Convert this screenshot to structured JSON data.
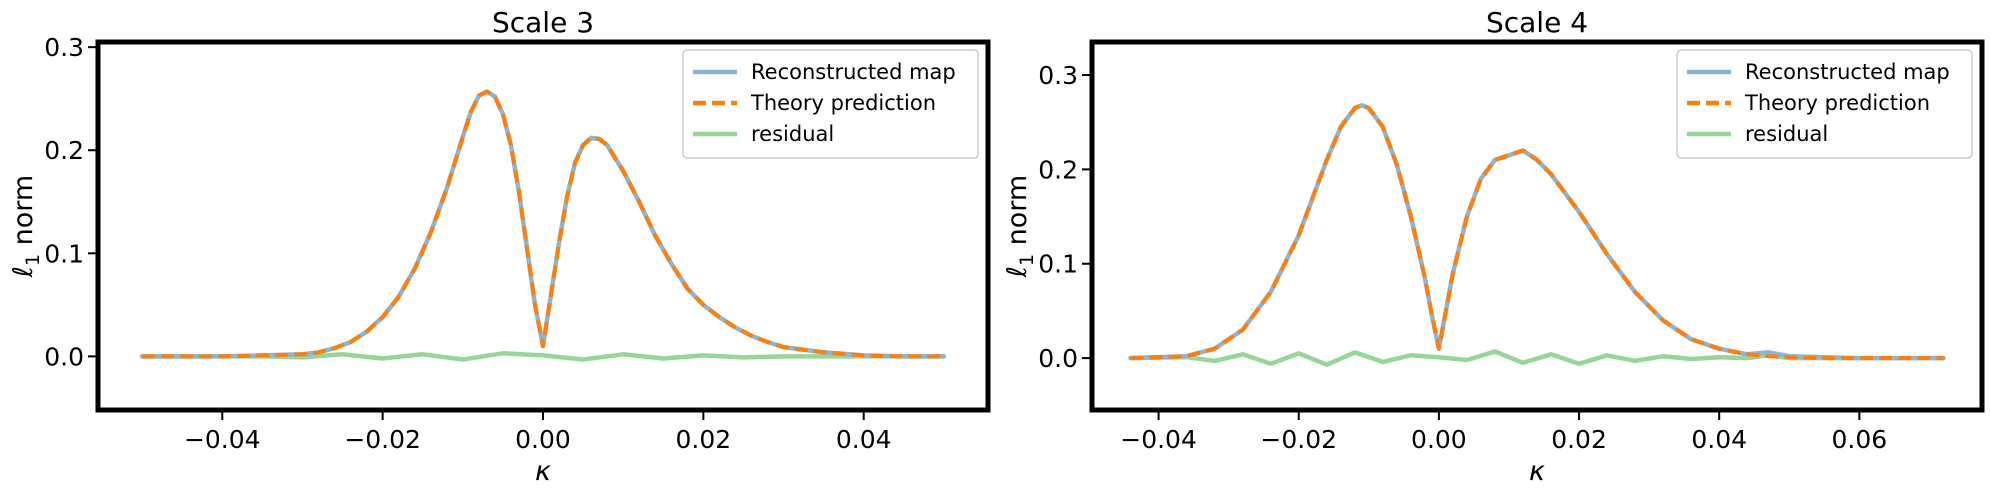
{
  "chart_data": [
    {
      "type": "line",
      "title": "Scale 3",
      "xlabel": "κ",
      "ylabel_symbol": "ℓ",
      "ylabel_sub": "1",
      "ylabel_rest": " norm",
      "xlim": [
        -0.0555,
        0.0555
      ],
      "ylim": [
        -0.052,
        0.305
      ],
      "xticks": [
        -0.04,
        -0.02,
        0.0,
        0.02,
        0.04
      ],
      "xtick_labels": [
        "−0.04",
        "−0.02",
        "0.00",
        "0.02",
        "0.04"
      ],
      "yticks": [
        0.0,
        0.1,
        0.2,
        0.3
      ],
      "ytick_labels": [
        "0.0",
        "0.1",
        "0.2",
        "0.3"
      ],
      "grid": false,
      "legend_position": "top-right",
      "series": [
        {
          "name": "Reconstructed map",
          "color": "#8ab6d6",
          "style": "solid",
          "x": [
            -0.05,
            -0.04,
            -0.035,
            -0.03,
            -0.028,
            -0.026,
            -0.024,
            -0.022,
            -0.02,
            -0.018,
            -0.016,
            -0.014,
            -0.012,
            -0.01,
            -0.009,
            -0.008,
            -0.007,
            -0.006,
            -0.005,
            -0.004,
            -0.003,
            -0.002,
            -0.001,
            0.0,
            0.001,
            0.002,
            0.003,
            0.004,
            0.005,
            0.006,
            0.007,
            0.008,
            0.01,
            0.012,
            0.014,
            0.016,
            0.018,
            0.02,
            0.022,
            0.024,
            0.026,
            0.028,
            0.03,
            0.035,
            0.04,
            0.045,
            0.05
          ],
          "values": [
            0.0,
            0.0,
            0.001,
            0.002,
            0.004,
            0.008,
            0.014,
            0.024,
            0.038,
            0.058,
            0.085,
            0.12,
            0.163,
            0.213,
            0.237,
            0.253,
            0.257,
            0.252,
            0.235,
            0.205,
            0.16,
            0.105,
            0.05,
            0.01,
            0.06,
            0.11,
            0.155,
            0.188,
            0.205,
            0.212,
            0.211,
            0.205,
            0.18,
            0.15,
            0.117,
            0.09,
            0.066,
            0.05,
            0.038,
            0.028,
            0.02,
            0.014,
            0.009,
            0.004,
            0.001,
            0.0,
            0.0
          ]
        },
        {
          "name": "Theory prediction",
          "color": "#ff7f0e",
          "style": "dashed",
          "x": [
            -0.05,
            -0.04,
            -0.035,
            -0.03,
            -0.028,
            -0.026,
            -0.024,
            -0.022,
            -0.02,
            -0.018,
            -0.016,
            -0.014,
            -0.012,
            -0.01,
            -0.009,
            -0.008,
            -0.007,
            -0.006,
            -0.005,
            -0.004,
            -0.003,
            -0.002,
            -0.001,
            0.0,
            0.001,
            0.002,
            0.003,
            0.004,
            0.005,
            0.006,
            0.007,
            0.008,
            0.01,
            0.012,
            0.014,
            0.016,
            0.018,
            0.02,
            0.022,
            0.024,
            0.026,
            0.028,
            0.03,
            0.035,
            0.04,
            0.045,
            0.05
          ],
          "values": [
            0.0,
            0.0,
            0.001,
            0.002,
            0.004,
            0.008,
            0.014,
            0.024,
            0.038,
            0.058,
            0.085,
            0.12,
            0.163,
            0.213,
            0.237,
            0.253,
            0.257,
            0.252,
            0.235,
            0.205,
            0.16,
            0.105,
            0.05,
            0.01,
            0.06,
            0.11,
            0.155,
            0.188,
            0.205,
            0.212,
            0.211,
            0.205,
            0.18,
            0.15,
            0.117,
            0.09,
            0.066,
            0.05,
            0.038,
            0.028,
            0.02,
            0.014,
            0.009,
            0.004,
            0.001,
            0.0,
            0.0
          ]
        },
        {
          "name": "residual",
          "color": "#98d598",
          "style": "solid",
          "x": [
            -0.05,
            -0.035,
            -0.03,
            -0.025,
            -0.02,
            -0.015,
            -0.01,
            -0.005,
            0.0,
            0.005,
            0.01,
            0.015,
            0.02,
            0.025,
            0.03,
            0.035,
            0.05
          ],
          "values": [
            0.0,
            0.0,
            -0.001,
            0.002,
            -0.002,
            0.002,
            -0.003,
            0.003,
            0.001,
            -0.003,
            0.002,
            -0.002,
            0.001,
            -0.001,
            0.0,
            0.0,
            0.0
          ]
        }
      ]
    },
    {
      "type": "line",
      "title": "Scale 4",
      "xlabel": "κ",
      "ylabel_symbol": "ℓ",
      "ylabel_sub": "1",
      "ylabel_rest": " norm",
      "xlim": [
        -0.0495,
        0.0775
      ],
      "ylim": [
        -0.055,
        0.335
      ],
      "xticks": [
        -0.04,
        -0.02,
        0.0,
        0.02,
        0.04,
        0.06
      ],
      "xtick_labels": [
        "−0.04",
        "−0.02",
        "0.00",
        "0.02",
        "0.04",
        "0.06"
      ],
      "yticks": [
        0.0,
        0.1,
        0.2,
        0.3
      ],
      "ytick_labels": [
        "0.0",
        "0.1",
        "0.2",
        "0.3"
      ],
      "grid": false,
      "legend_position": "top-right",
      "series": [
        {
          "name": "Reconstructed map",
          "color": "#8ab6d6",
          "style": "solid",
          "x": [
            -0.044,
            -0.036,
            -0.032,
            -0.028,
            -0.024,
            -0.02,
            -0.018,
            -0.016,
            -0.014,
            -0.012,
            -0.011,
            -0.01,
            -0.008,
            -0.006,
            -0.004,
            -0.002,
            -0.001,
            0.0,
            0.002,
            0.004,
            0.006,
            0.008,
            0.01,
            0.012,
            0.014,
            0.016,
            0.02,
            0.024,
            0.028,
            0.032,
            0.036,
            0.04,
            0.044,
            0.047,
            0.05,
            0.055,
            0.06,
            0.065,
            0.072
          ],
          "values": [
            0.0,
            0.002,
            0.01,
            0.03,
            0.07,
            0.13,
            0.17,
            0.21,
            0.245,
            0.265,
            0.268,
            0.265,
            0.245,
            0.205,
            0.15,
            0.085,
            0.045,
            0.01,
            0.09,
            0.15,
            0.19,
            0.21,
            0.215,
            0.22,
            0.21,
            0.195,
            0.155,
            0.11,
            0.07,
            0.04,
            0.02,
            0.01,
            0.004,
            0.006,
            0.002,
            0.001,
            0.0,
            0.0,
            0.0
          ]
        },
        {
          "name": "Theory prediction",
          "color": "#ff7f0e",
          "style": "dashed",
          "x": [
            -0.044,
            -0.036,
            -0.032,
            -0.028,
            -0.024,
            -0.02,
            -0.018,
            -0.016,
            -0.014,
            -0.012,
            -0.011,
            -0.01,
            -0.008,
            -0.006,
            -0.004,
            -0.002,
            -0.001,
            0.0,
            0.002,
            0.004,
            0.006,
            0.008,
            0.01,
            0.012,
            0.014,
            0.016,
            0.02,
            0.024,
            0.028,
            0.032,
            0.036,
            0.04,
            0.044,
            0.047,
            0.05,
            0.055,
            0.06,
            0.065,
            0.072
          ],
          "values": [
            0.0,
            0.002,
            0.01,
            0.03,
            0.07,
            0.13,
            0.17,
            0.21,
            0.245,
            0.265,
            0.268,
            0.265,
            0.245,
            0.205,
            0.15,
            0.085,
            0.045,
            0.01,
            0.09,
            0.15,
            0.19,
            0.21,
            0.215,
            0.22,
            0.21,
            0.195,
            0.155,
            0.11,
            0.07,
            0.04,
            0.02,
            0.01,
            0.004,
            0.002,
            0.001,
            0.0,
            0.0,
            0.0,
            0.0
          ]
        },
        {
          "name": "residual",
          "color": "#98d598",
          "style": "solid",
          "x": [
            -0.044,
            -0.036,
            -0.032,
            -0.028,
            -0.024,
            -0.02,
            -0.016,
            -0.012,
            -0.008,
            -0.004,
            0.0,
            0.004,
            0.008,
            0.012,
            0.016,
            0.02,
            0.024,
            0.028,
            0.032,
            0.036,
            0.04,
            0.044,
            0.047,
            0.05,
            0.06,
            0.072
          ],
          "values": [
            0.0,
            0.001,
            -0.003,
            0.004,
            -0.006,
            0.005,
            -0.007,
            0.006,
            -0.004,
            0.003,
            0.001,
            -0.002,
            0.007,
            -0.005,
            0.004,
            -0.006,
            0.003,
            -0.003,
            0.002,
            -0.001,
            0.001,
            0.0,
            0.003,
            0.0,
            0.0,
            0.0
          ]
        }
      ]
    }
  ]
}
